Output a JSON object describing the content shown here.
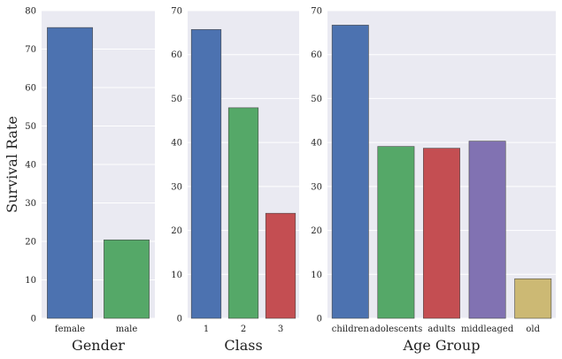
{
  "figure": {
    "ylabel": "Survival Rate"
  },
  "chart_data": [
    {
      "type": "bar",
      "xlabel": "Gender",
      "ylabel": "Survival Rate",
      "categories": [
        "female",
        "male"
      ],
      "values": [
        75.6,
        20.4
      ],
      "ylim": [
        0,
        80
      ],
      "yticks": [
        0,
        10,
        20,
        30,
        40,
        50,
        60,
        70,
        80
      ],
      "colors": [
        "#4c72b0",
        "#55a868"
      ],
      "grid": true
    },
    {
      "type": "bar",
      "xlabel": "Class",
      "ylabel": "",
      "categories": [
        "1",
        "2",
        "3"
      ],
      "values": [
        65.7,
        47.9,
        23.9
      ],
      "ylim": [
        0,
        70
      ],
      "yticks": [
        0,
        10,
        20,
        30,
        40,
        50,
        60,
        70
      ],
      "colors": [
        "#4c72b0",
        "#55a868",
        "#c44e52"
      ],
      "grid": true
    },
    {
      "type": "bar",
      "xlabel": "Age Group",
      "ylabel": "",
      "categories": [
        "children",
        "adolescents",
        "adults",
        "middleaged",
        "old"
      ],
      "values": [
        66.7,
        39.1,
        38.7,
        40.3,
        9.0
      ],
      "ylim": [
        0,
        70
      ],
      "yticks": [
        0,
        10,
        20,
        30,
        40,
        50,
        60,
        70
      ],
      "colors": [
        "#4c72b0",
        "#55a868",
        "#c44e52",
        "#8172b2",
        "#ccb974"
      ],
      "grid": true
    }
  ]
}
